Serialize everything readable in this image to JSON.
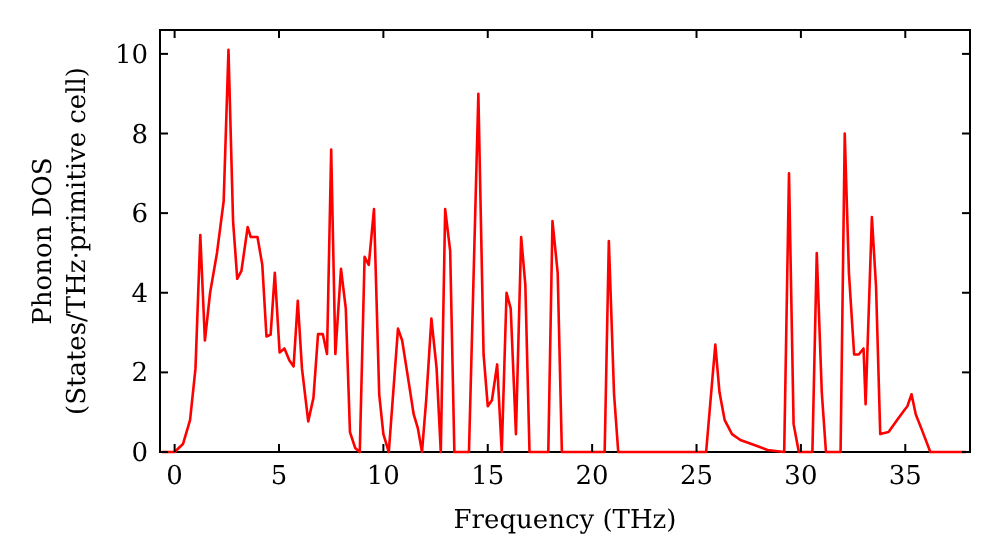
{
  "chart_data": {
    "type": "line",
    "xlabel": "Frequency (THz)",
    "ylabel": "Phonon DOS\n(States/THz·primitive cell)",
    "xlim": [
      -0.7,
      38.1
    ],
    "ylim": [
      0,
      10.6
    ],
    "xticks": [
      0,
      5,
      10,
      15,
      20,
      25,
      30,
      35
    ],
    "yticks": [
      0,
      2,
      4,
      6,
      8,
      10
    ],
    "grid": false,
    "marker": "none",
    "line_style": "solid",
    "series": [
      {
        "color": "#ff0000",
        "x": [
          -0.6,
          0,
          0.4,
          0.74,
          1,
          1.23,
          1.45,
          1.7,
          2.03,
          2.35,
          2.58,
          2.8,
          3,
          3.2,
          3.5,
          3.65,
          3.97,
          4.2,
          4.4,
          4.6,
          4.8,
          5.03,
          5.26,
          5.5,
          5.7,
          5.9,
          6.1,
          6.4,
          6.65,
          6.87,
          7.1,
          7.3,
          7.5,
          7.7,
          7.97,
          8.2,
          8.4,
          8.65,
          8.87,
          9.1,
          9.3,
          9.55,
          9.8,
          10,
          10.26,
          10.7,
          10.9,
          11.2,
          11.45,
          11.65,
          11.85,
          12.05,
          12.15,
          12.3,
          12.55,
          12.75,
          12.96,
          13.2,
          13.4,
          14.1,
          14.55,
          14.8,
          15,
          15.2,
          15.45,
          15.67,
          15.9,
          16.1,
          16.35,
          16.6,
          16.8,
          17,
          17.9,
          18.1,
          18.35,
          18.55,
          20.6,
          20.8,
          21.05,
          21.25,
          25.46,
          25.9,
          26.1,
          26.35,
          26.7,
          27.1,
          27.9,
          28.4,
          29.2,
          29.43,
          29.65,
          29.9,
          30.55,
          30.76,
          31,
          31.2,
          31.9,
          32.1,
          32.3,
          32.55,
          32.77,
          33,
          33.1,
          33.4,
          33.6,
          33.8,
          34.2,
          34.6,
          34.95,
          35.1,
          35.3,
          35.5,
          35.8,
          36.2,
          37.9
        ],
        "values": [
          0,
          0,
          0.2,
          0.8,
          2.1,
          5.45,
          2.8,
          4,
          5,
          6.3,
          10.1,
          5.8,
          4.35,
          4.55,
          5.65,
          5.4,
          5.4,
          4.7,
          2.9,
          2.95,
          4.5,
          2.5,
          2.6,
          2.3,
          2.15,
          3.8,
          2.1,
          0.77,
          1.36,
          2.96,
          2.96,
          2.46,
          7.6,
          2.46,
          4.6,
          3.6,
          0.5,
          0.1,
          0,
          4.9,
          4.7,
          6.1,
          1.45,
          0.45,
          0,
          3.1,
          2.8,
          1.8,
          0.95,
          0.6,
          0,
          1.3,
          2.1,
          3.35,
          2.1,
          0,
          6.1,
          5.05,
          0,
          0,
          9,
          2.45,
          1.15,
          1.3,
          2.2,
          0,
          4,
          3.6,
          0.45,
          5.4,
          4.2,
          0,
          0,
          5.8,
          4.5,
          0,
          0,
          5.3,
          1.45,
          0,
          0,
          2.7,
          1.5,
          0.8,
          0.45,
          0.3,
          0.15,
          0.05,
          0,
          7,
          0.7,
          0,
          0,
          5,
          1.5,
          0,
          0,
          8,
          4.5,
          2.45,
          2.45,
          2.6,
          1.2,
          5.9,
          4.15,
          0.45,
          0.5,
          0.8,
          1.05,
          1.15,
          1.45,
          0.95,
          0.55,
          0,
          0
        ]
      }
    ]
  }
}
